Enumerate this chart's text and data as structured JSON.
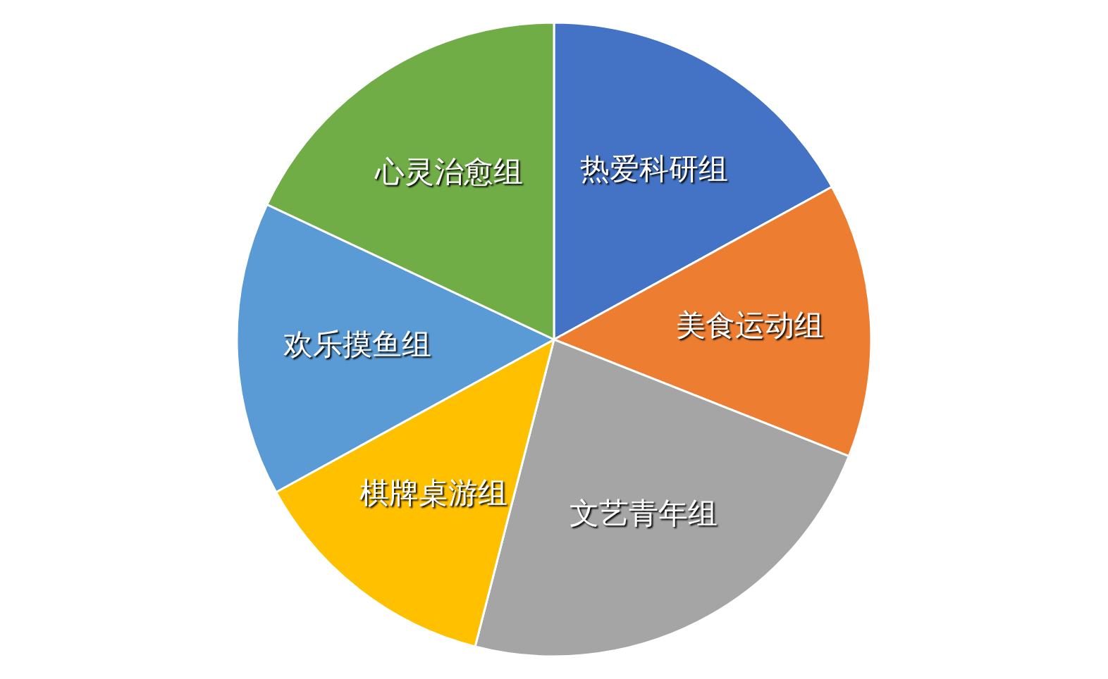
{
  "chart_data": {
    "type": "pie",
    "categories": [
      "热爱科研组",
      "美食运动组",
      "文艺青年组",
      "棋牌桌游组",
      "欢乐摸鱼组",
      "心灵治愈组"
    ],
    "values": [
      17,
      14,
      23,
      13,
      15,
      18
    ],
    "colors": [
      "#4472c4",
      "#ed7d31",
      "#a5a5a5",
      "#ffc000",
      "#5b9bd5",
      "#70ad47"
    ]
  }
}
